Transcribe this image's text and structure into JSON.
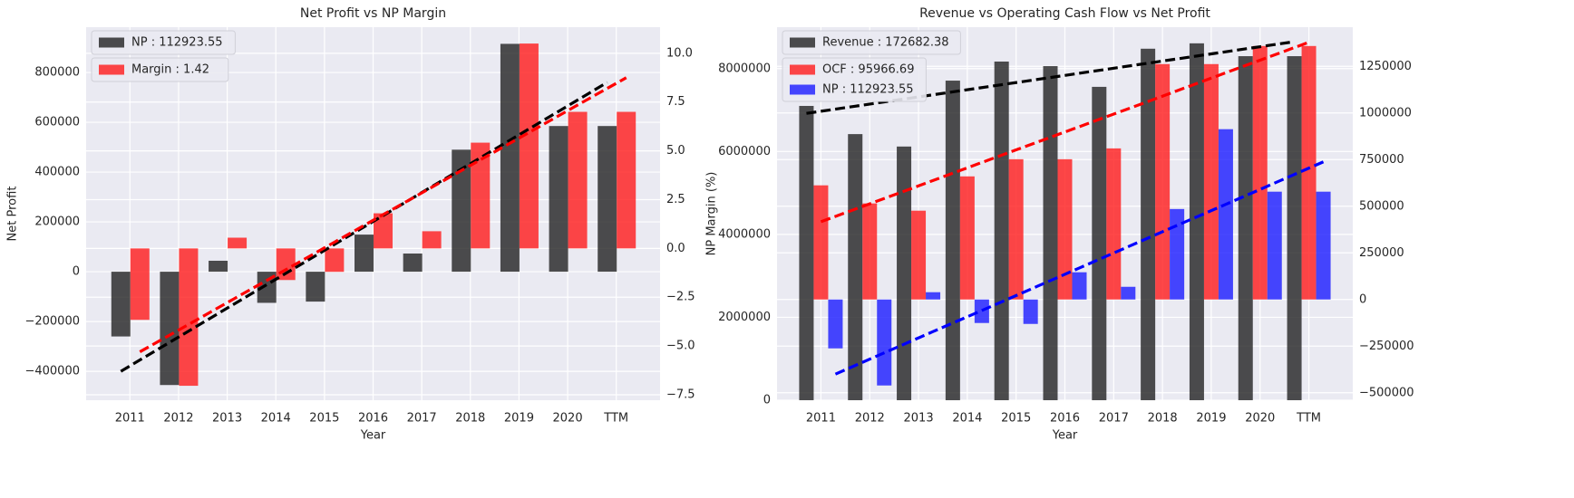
{
  "chart_data": [
    {
      "type": "bar",
      "title": "Net Profit vs NP Margin",
      "xlabel": "Year",
      "ylabel": "Net Profit",
      "y2label": "NP Margin (%)",
      "categories": [
        "2011",
        "2012",
        "2013",
        "2014",
        "2015",
        "2016",
        "2017",
        "2018",
        "2019",
        "2020",
        "TTM"
      ],
      "series": [
        {
          "name": "NP : 112923.55",
          "color": "#222222",
          "axis": "y",
          "values": [
            -260000,
            -455000,
            44000,
            -125000,
            -120000,
            149000,
            73000,
            490000,
            915000,
            585000,
            585000
          ]
        },
        {
          "name": "Margin : 1.42",
          "color": "#ff1a1a",
          "axis": "y2",
          "values": [
            -3.66,
            -7.04,
            0.55,
            -1.62,
            -1.2,
            1.8,
            0.88,
            5.42,
            10.5,
            7.0,
            7.0
          ]
        }
      ],
      "trends": [
        {
          "color": "#000000",
          "axis": "y",
          "values": [
            -400000,
            -284000,
            -168000,
            -52000,
            64000,
            180000,
            296000,
            412000,
            528000,
            644000,
            760000
          ]
        },
        {
          "color": "#ff0000",
          "axis": "y2",
          "values": [
            -5.3,
            -3.9,
            -2.49,
            -1.09,
            0.32,
            1.73,
            3.13,
            4.54,
            5.94,
            7.35,
            8.75
          ]
        }
      ],
      "ylim": [
        -516000,
        982000
      ],
      "yticks": [
        {
          "value": -400000,
          "label": "−400000"
        },
        {
          "value": -200000,
          "label": "−200000"
        },
        0,
        200000,
        400000,
        600000,
        800000
      ],
      "y2lim": [
        -7.78,
        11.34
      ],
      "y2ticks": [
        {
          "value": -7.5,
          "label": "−7.5"
        },
        {
          "value": -5,
          "label": "−5.0"
        },
        {
          "value": -2.5,
          "label": "−2.5"
        },
        {
          "value": 0,
          "label": "0.0"
        },
        {
          "value": 2.5,
          "label": "2.5"
        },
        {
          "value": 5,
          "label": "5.0"
        },
        {
          "value": 7.5,
          "label": "7.5"
        },
        {
          "value": 10,
          "label": "10.0"
        }
      ],
      "grid": true
    },
    {
      "type": "bar",
      "title": "Revenue vs Operating Cash Flow vs Net Profit",
      "xlabel": "Year",
      "categories": [
        "2011",
        "2012",
        "2013",
        "2014",
        "2015",
        "2016",
        "2017",
        "2018",
        "2019",
        "2020",
        "TTM"
      ],
      "series": [
        {
          "name": "Revenue : 172682.38",
          "color": "#222222",
          "axis": "y",
          "values": [
            7100000,
            6420000,
            6120000,
            7710000,
            8170000,
            8060000,
            7560000,
            8480000,
            8610000,
            8300000,
            8300000
          ]
        },
        {
          "name": "OCF : 95966.69",
          "color": "#ff1a1a",
          "axis": "y2",
          "values": [
            612000,
            515000,
            476000,
            660000,
            752000,
            752000,
            810000,
            1262000,
            1262000,
            1359000,
            1359000
          ]
        },
        {
          "name": "NP : 112923.55",
          "color": "#1a1aff",
          "axis": "y2",
          "values": [
            -262000,
            -461000,
            39000,
            -126000,
            -131000,
            146000,
            68000,
            485000,
            913000,
            578000,
            578000
          ]
        }
      ],
      "trends": [
        {
          "color": "#000000",
          "axis": "y",
          "values": [
            6920000,
            7093000,
            7266000,
            7439000,
            7612000,
            7785000,
            7958000,
            8131000,
            8304000,
            8477000,
            8650000
          ]
        },
        {
          "color": "#ff0000",
          "axis": "y2",
          "values": [
            417000,
            513000,
            609000,
            706000,
            802000,
            898000,
            994000,
            1090000,
            1187000,
            1283000,
            1379000
          ]
        },
        {
          "color": "#0000ff",
          "axis": "y2",
          "values": [
            -400000,
            -286000,
            -172000,
            -59000,
            55000,
            169000,
            283000,
            397000,
            510000,
            624000,
            738000
          ]
        }
      ],
      "ylim": [
        0,
        9000000
      ],
      "yticks": [
        0,
        2000000,
        4000000,
        6000000,
        8000000
      ],
      "y2lim": [
        -540000,
        1460000
      ],
      "y2ticks": [
        {
          "value": -500000,
          "label": "−500000"
        },
        {
          "value": -250000,
          "label": "−250000"
        },
        0,
        250000,
        500000,
        750000,
        1000000,
        1250000
      ],
      "grid": true
    }
  ]
}
